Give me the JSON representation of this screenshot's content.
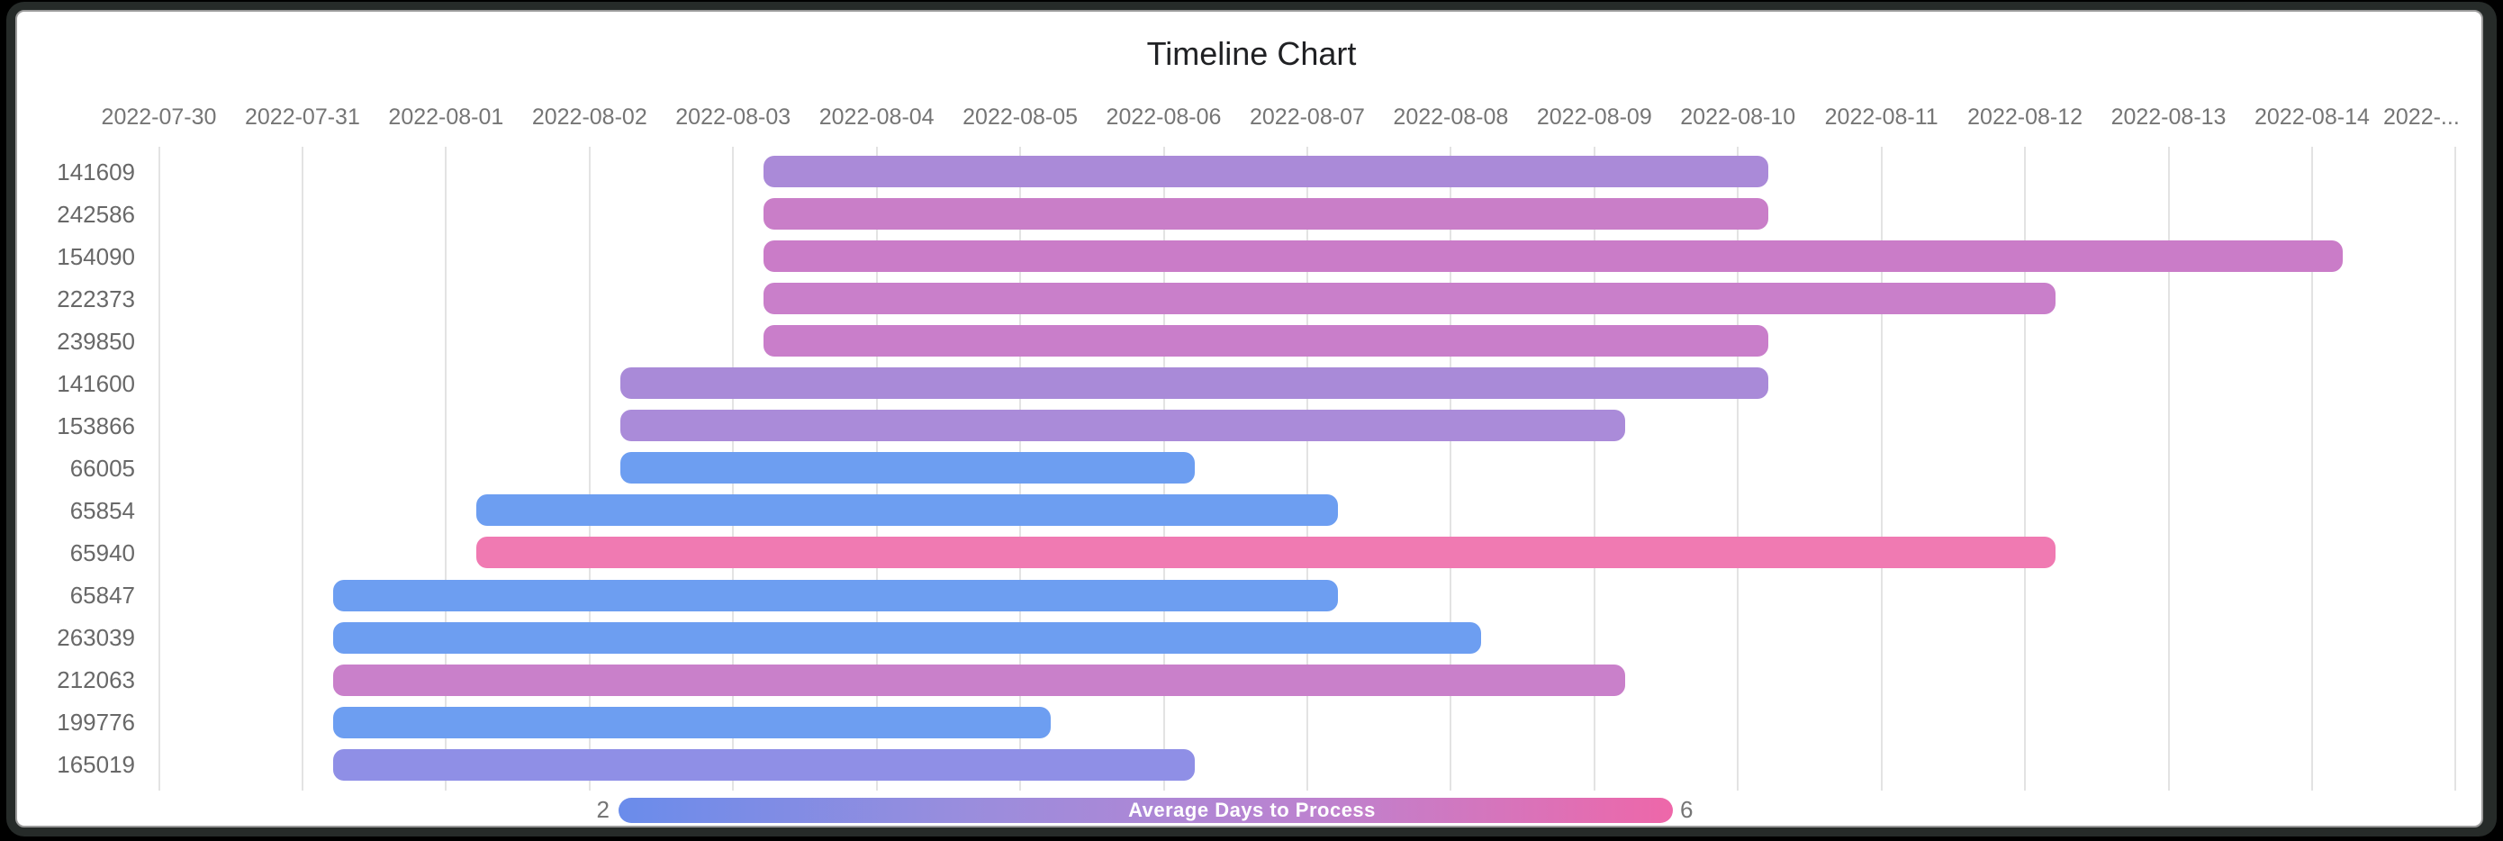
{
  "window": {
    "frame_color": "#262b29",
    "card_color": "#ffffff"
  },
  "chart_data": {
    "type": "timeline",
    "title": "Timeline Chart",
    "x_axis": {
      "start_date": "2022-07-30",
      "days_per_tick": 1,
      "tick_labels": [
        "2022-07-30",
        "2022-07-31",
        "2022-08-01",
        "2022-08-02",
        "2022-08-03",
        "2022-08-04",
        "2022-08-05",
        "2022-08-06",
        "2022-08-07",
        "2022-08-08",
        "2022-08-09",
        "2022-08-10",
        "2022-08-11",
        "2022-08-12",
        "2022-08-13",
        "2022-08-14",
        "2022-..."
      ],
      "tick_label_color": "#757575",
      "gridline_color": "#e3e3e3"
    },
    "rows": [
      {
        "label": "141609",
        "start": "2022-08-03",
        "end": "2022-08-10",
        "color": "#aa8ad8"
      },
      {
        "label": "242586",
        "start": "2022-08-03",
        "end": "2022-08-10",
        "color": "#c97ec8"
      },
      {
        "label": "154090",
        "start": "2022-08-03",
        "end": "2022-08-14",
        "color": "#ca7cc8"
      },
      {
        "label": "222373",
        "start": "2022-08-03",
        "end": "2022-08-12",
        "color": "#c97fca"
      },
      {
        "label": "239850",
        "start": "2022-08-03",
        "end": "2022-08-10",
        "color": "#c97eca"
      },
      {
        "label": "141600",
        "start": "2022-08-02",
        "end": "2022-08-10",
        "color": "#a98ad8"
      },
      {
        "label": "153866",
        "start": "2022-08-02",
        "end": "2022-08-09",
        "color": "#aa8bd9"
      },
      {
        "label": "66005",
        "start": "2022-08-02",
        "end": "2022-08-06",
        "color": "#6d9ef1"
      },
      {
        "label": "65854",
        "start": "2022-08-01",
        "end": "2022-08-07",
        "color": "#6d9ef1"
      },
      {
        "label": "65940",
        "start": "2022-08-01",
        "end": "2022-08-12",
        "color": "#f07ab2"
      },
      {
        "label": "65847",
        "start": "2022-07-31",
        "end": "2022-08-07",
        "color": "#6d9ef1"
      },
      {
        "label": "263039",
        "start": "2022-07-31",
        "end": "2022-08-08",
        "color": "#6d9ef1"
      },
      {
        "label": "212063",
        "start": "2022-07-31",
        "end": "2022-08-09",
        "color": "#c980ca"
      },
      {
        "label": "199776",
        "start": "2022-07-31",
        "end": "2022-08-05",
        "color": "#6d9ef1"
      },
      {
        "label": "165019",
        "start": "2022-07-31",
        "end": "2022-08-06",
        "color": "#8f8fe6"
      }
    ],
    "legend": {
      "label": "Average Days to Process",
      "min": "2",
      "max": "6",
      "gradient_stops": [
        "#6a8ceb",
        "#9a8ddd",
        "#bd82cf",
        "#ee67a9"
      ],
      "position": "bottom"
    },
    "layout_hints": {
      "grid": "vertical-only",
      "title_color": "#202124",
      "row_label_color": "#686868"
    }
  }
}
